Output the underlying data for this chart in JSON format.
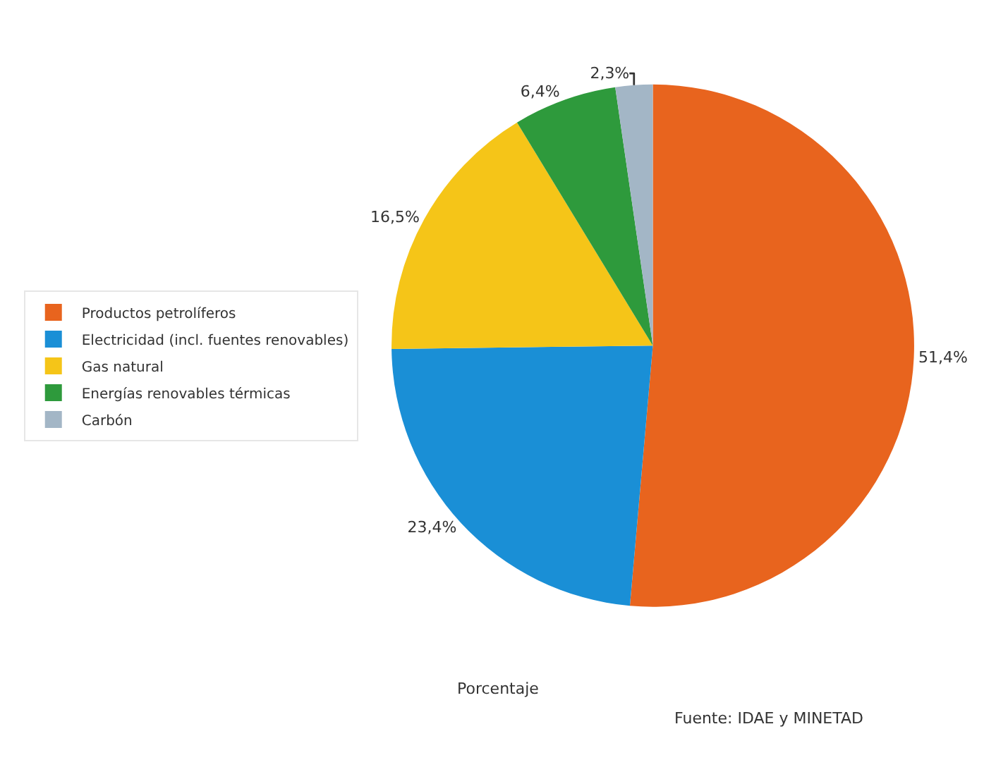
{
  "chart_data": {
    "type": "pie",
    "categories": [
      "Productos petrolíferos",
      "Electricidad (incl. fuentes renovables)",
      "Gas natural",
      "Energías renovables térmicas",
      "Carbón"
    ],
    "values": [
      51.4,
      23.4,
      16.5,
      6.4,
      2.3
    ],
    "value_labels": [
      "51,4%",
      "23,4%",
      "16,5%",
      "6,4%",
      "2,3%"
    ],
    "colors": [
      "#e8641e",
      "#1a8fd6",
      "#f5c518",
      "#2e9a3c",
      "#a3b6c6"
    ],
    "legend": "left",
    "annotations": [
      "Porcentaje",
      "Fuente: IDAE y MINETAD"
    ]
  }
}
